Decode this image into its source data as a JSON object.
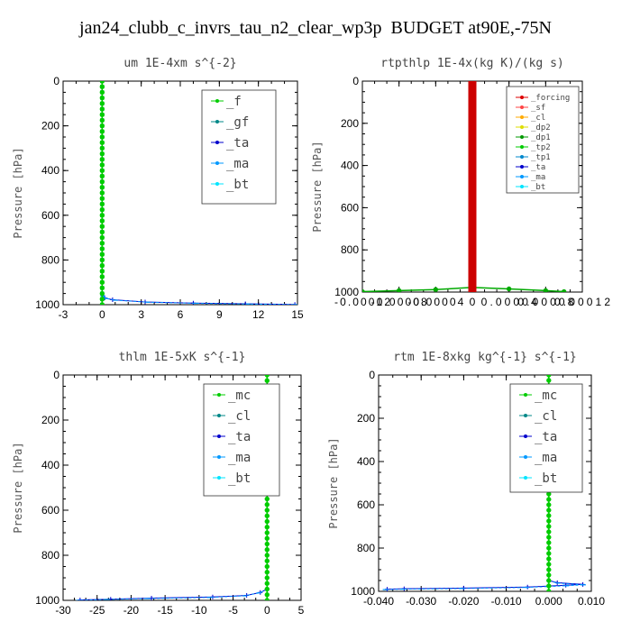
{
  "title": "jan24_clubb_c_invrs_tau_n2_clear_wp3p  BUDGET at90E,-75N",
  "chart_data": [
    {
      "type": "line",
      "title": "um  1E-4xm s^{-2}",
      "ylabel": "Pressure [hPa]",
      "xlim": [
        -3,
        15
      ],
      "ylim": [
        1000,
        0
      ],
      "xticks": [
        -3,
        0,
        3,
        6,
        9,
        12,
        15
      ],
      "xtick_labels": [
        "-3",
        "0",
        "3",
        "6",
        "9",
        "12",
        "15"
      ],
      "yticks": [
        0,
        200,
        400,
        600,
        800,
        1000
      ],
      "ytick_labels": [
        "0",
        "200",
        "400",
        "600",
        "800",
        "1000"
      ],
      "legend": [
        "_f",
        "_gf",
        "_ta",
        "_ma",
        "_bt"
      ],
      "legend_colors": [
        "#00cc00",
        "#008888",
        "#0000cc",
        "#0099ff",
        "#00e5ff"
      ],
      "series": [
        {
          "name": "_ta",
          "color": "#0000cc",
          "marker": "+",
          "points": [
            [
              0.05,
              960
            ],
            [
              0.2,
              970
            ],
            [
              0.8,
              978
            ],
            [
              3.3,
              988
            ],
            [
              7,
              993
            ],
            [
              11,
              996
            ],
            [
              14.8,
              999
            ]
          ]
        },
        {
          "name": "_ma",
          "color": "#0099ff",
          "marker": "-",
          "points": [
            [
              0.05,
              962
            ],
            [
              0.3,
              972
            ],
            [
              1.0,
              980
            ],
            [
              3.5,
              989
            ],
            [
              7.2,
              994
            ],
            [
              11.2,
              997
            ],
            [
              14.9,
              1000
            ]
          ]
        },
        {
          "name": "_gf",
          "color": "#008888",
          "marker": "x",
          "points": [
            [
              0,
              0
            ],
            [
              0,
              1000
            ]
          ]
        },
        {
          "name": "_f",
          "color": "#00cc00",
          "marker": "o",
          "points": [
            [
              0,
              0
            ],
            [
              0,
              1000
            ]
          ]
        }
      ]
    },
    {
      "type": "line",
      "title": "rtpthlp  1E-4x(kg K)/(kg s)",
      "ylabel": "Pressure [hPa]",
      "xlim": [
        -0.00012,
        0.00012
      ],
      "ylim": [
        1000,
        0
      ],
      "xticks": [
        -0.00012,
        -8e-05,
        -4e-05,
        0,
        4e-05,
        8e-05,
        0.00012
      ],
      "xtick_labels": [
        "-0.00012",
        "-0.00008",
        "-0.00004",
        "0",
        "0.00004",
        "0.00008",
        "0.00012"
      ],
      "tick_label_mode": "overlap",
      "yticks": [
        0,
        200,
        400,
        600,
        800,
        1000
      ],
      "ytick_labels": [
        "0",
        "200",
        "400",
        "600",
        "800",
        "1000"
      ],
      "legend": [
        "_forcing",
        "_sf",
        "_cl",
        "_dp2",
        "_dp1",
        "_tp2",
        "_tp1",
        "_ta",
        "_ma",
        "_bt"
      ],
      "legend_colors": [
        "#dd0000",
        "#ff4444",
        "#ffaa00",
        "#dddd00",
        "#009900",
        "#00cc00",
        "#0088cc",
        "#0000cc",
        "#0099ff",
        "#00e5ff"
      ],
      "series": [
        {
          "name": "_tp2",
          "color": "#00aa00",
          "marker": "o",
          "points": [
            [
              -0.00012,
              998
            ],
            [
              -8e-05,
              993
            ],
            [
              -4e-05,
              988
            ],
            [
              0,
              978
            ],
            [
              4e-05,
              985
            ],
            [
              8e-05,
              993
            ],
            [
              0.0001,
              998
            ]
          ]
        },
        {
          "name": "_forcing",
          "color": "#cc0000",
          "marker": "o",
          "points": [
            [
              0,
              0
            ],
            [
              0,
              1000
            ]
          ],
          "band": true
        }
      ]
    },
    {
      "type": "line",
      "title": "thlm  1E-5xK s^{-1}",
      "ylabel": "Pressure [hPa]",
      "xlim": [
        -30,
        5
      ],
      "ylim": [
        1000,
        0
      ],
      "xticks": [
        -30,
        -25,
        -20,
        -15,
        -10,
        -5,
        0,
        5
      ],
      "xtick_labels": [
        "-30",
        "-25",
        "-20",
        "-15",
        "-10",
        "-5",
        "0",
        "5"
      ],
      "yticks": [
        0,
        200,
        400,
        600,
        800,
        1000
      ],
      "ytick_labels": [
        "0",
        "200",
        "400",
        "600",
        "800",
        "1000"
      ],
      "legend": [
        "_mc",
        "_cl",
        "_ta",
        "_ma",
        "_bt"
      ],
      "legend_colors": [
        "#00cc00",
        "#008888",
        "#0000cc",
        "#0099ff",
        "#00e5ff"
      ],
      "series": [
        {
          "name": "_ta",
          "color": "#0000cc",
          "marker": "+",
          "points": [
            [
              0,
              950
            ],
            [
              -1,
              965
            ],
            [
              -3,
              978
            ],
            [
              -8,
              985
            ],
            [
              -17,
              990
            ],
            [
              -23,
              995
            ],
            [
              -27.5,
              998
            ]
          ]
        },
        {
          "name": "_ma",
          "color": "#0099ff",
          "marker": "-",
          "points": [
            [
              0,
              952
            ],
            [
              -1.2,
              967
            ],
            [
              -3.3,
              980
            ],
            [
              -8.5,
              987
            ],
            [
              -17.5,
              992
            ],
            [
              -23.5,
              996
            ],
            [
              -27.8,
              1000
            ]
          ]
        },
        {
          "name": "_mc",
          "color": "#00cc00",
          "marker": "o",
          "points": [
            [
              0,
              0
            ],
            [
              0,
              1000
            ]
          ]
        }
      ]
    },
    {
      "type": "line",
      "title": "rtm  1E-8xkg kg^{-1} s^{-1}",
      "ylabel": "Pressure [hPa]",
      "xlim": [
        -0.04,
        0.01
      ],
      "ylim": [
        1000,
        0
      ],
      "xticks": [
        -0.04,
        -0.03,
        -0.02,
        -0.01,
        0,
        0.01
      ],
      "xtick_labels": [
        "-0.040",
        "-0.030",
        "-0.020",
        "-0.010",
        "0.000",
        "0.010"
      ],
      "yticks": [
        0,
        200,
        400,
        600,
        800,
        1000
      ],
      "ytick_labels": [
        "0",
        "200",
        "400",
        "600",
        "800",
        "1000"
      ],
      "legend": [
        "_mc",
        "_cl",
        "_ta",
        "_ma",
        "_bt"
      ],
      "legend_colors": [
        "#00cc00",
        "#008888",
        "#0000cc",
        "#0099ff",
        "#00e5ff"
      ],
      "series": [
        {
          "name": "_ta",
          "color": "#0000cc",
          "marker": "+",
          "points": [
            [
              0,
              950
            ],
            [
              0.002,
              960
            ],
            [
              0.008,
              968
            ],
            [
              0.004,
              972
            ],
            [
              -0.005,
              980
            ],
            [
              -0.02,
              985
            ],
            [
              -0.034,
              988
            ],
            [
              -0.038,
              990
            ]
          ]
        },
        {
          "name": "_ma",
          "color": "#0099ff",
          "marker": "-",
          "points": [
            [
              0,
              952
            ],
            [
              0.0022,
              962
            ],
            [
              0.0082,
              970
            ],
            [
              0.0042,
              974
            ],
            [
              -0.0052,
              982
            ],
            [
              -0.0205,
              987
            ],
            [
              -0.0345,
              990
            ],
            [
              -0.0385,
              992
            ]
          ]
        },
        {
          "name": "_mc",
          "color": "#00cc00",
          "marker": "o",
          "points": [
            [
              0,
              0
            ],
            [
              0,
              1000
            ]
          ]
        }
      ]
    }
  ]
}
